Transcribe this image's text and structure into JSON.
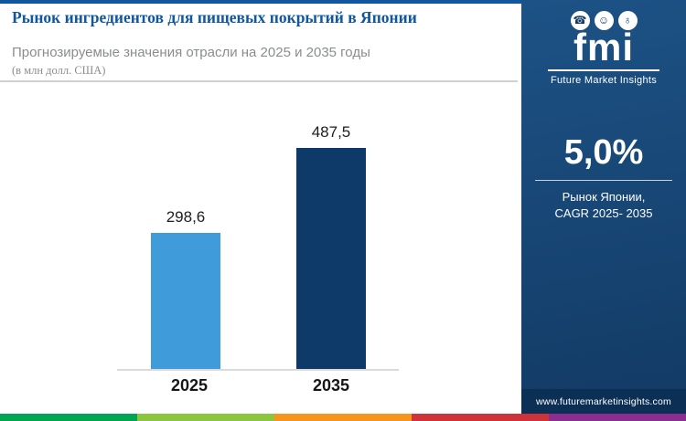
{
  "header": {
    "title": "Рынок ингредиентов для пищевых покрытий в Японии",
    "subtitle": "Прогнозируемые значения отрасли на 2025 и 2035 годы",
    "unit_note": "(в млн долл. США)"
  },
  "chart_data": {
    "type": "bar",
    "title": "Рынок ингредиентов для пищевых покрытий в Японии",
    "categories": [
      "2025",
      "2035"
    ],
    "values": [
      298.6,
      487.5
    ],
    "value_labels": [
      "298,6",
      "487,5"
    ],
    "ylabel": "млн долл. США",
    "ylim": [
      0,
      500
    ],
    "grid": false,
    "legend": "none",
    "bar_colors": [
      "#3f9bd9",
      "#0e3a69"
    ]
  },
  "sidebar": {
    "logo": {
      "text": "fmi",
      "subtext": "Future Market Insights",
      "icons": [
        {
          "name": "phone-icon",
          "glyph": "☎"
        },
        {
          "name": "person-icon",
          "glyph": "☺"
        },
        {
          "name": "globe-icon",
          "glyph": "♁"
        }
      ]
    },
    "stat": {
      "value": "5,0%",
      "caption_line1": "Рынок Японии,",
      "caption_line2": "CAGR 2025- 2035"
    },
    "website": "www.futuremarketinsights.com"
  },
  "colors": {
    "accent_blue": "#1057a0",
    "subtitle_gray": "#8a8d90",
    "sidebar_top": "#1d5286",
    "sidebar_bottom": "#123a64",
    "footer_band": "#0c2f55",
    "stripe": [
      "#00a551",
      "#8cc63e",
      "#f7941e",
      "#cf3339",
      "#8e2d8f"
    ]
  }
}
